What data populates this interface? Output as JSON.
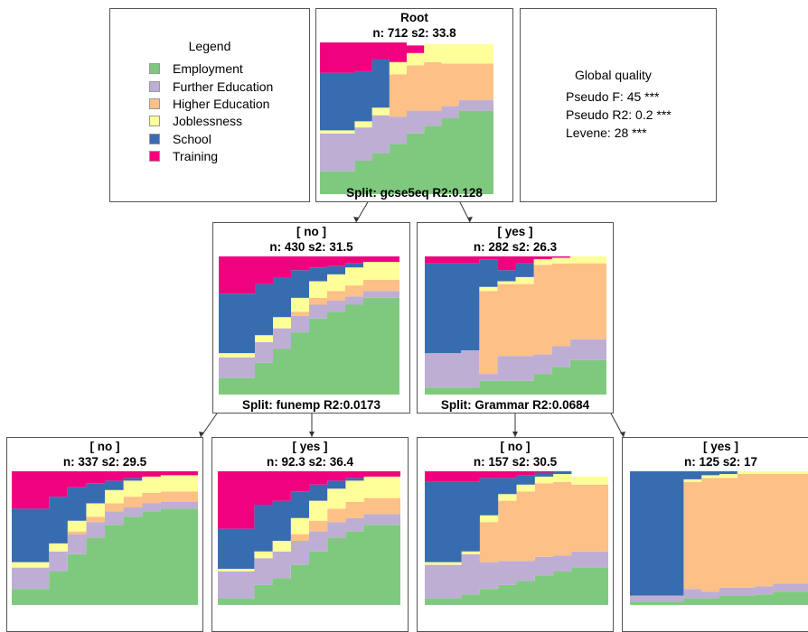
{
  "colors": {
    "Employment": "#7fc97f",
    "Further Education": "#beaed4",
    "Higher Education": "#fdc086",
    "Joblessness": "#ffff99",
    "School": "#386cb0",
    "Training": "#f0027f"
  },
  "legend": {
    "title": "Legend",
    "items": [
      {
        "label": "Employment",
        "color": "#7fc97f"
      },
      {
        "label": "Further Education",
        "color": "#beaed4"
      },
      {
        "label": "Higher Education",
        "color": "#fdc086"
      },
      {
        "label": "Joblessness",
        "color": "#ffff99"
      },
      {
        "label": "School",
        "color": "#386cb0"
      },
      {
        "label": "Training",
        "color": "#f0027f"
      }
    ]
  },
  "quality": {
    "title": "Global quality",
    "lines": [
      "Pseudo F: 45 ***",
      "Pseudo R2: 0.2 ***",
      "Levene: 28 ***"
    ]
  },
  "nodes": {
    "root": {
      "label": "Root",
      "stats": "n: 712 s2: 33.8",
      "split": "Split: gcse5eq R2:0.128",
      "profile": [
        [
          0.15,
          0.25,
          0,
          0.02,
          0.38,
          0.2
        ],
        [
          0.15,
          0.25,
          0,
          0.02,
          0.38,
          0.2
        ],
        [
          0.22,
          0.22,
          0,
          0.04,
          0.33,
          0.19
        ],
        [
          0.27,
          0.25,
          0,
          0.05,
          0.32,
          0.11
        ],
        [
          0.33,
          0.18,
          0.28,
          0.08,
          0,
          0.13
        ],
        [
          0.4,
          0.15,
          0.3,
          0.08,
          0,
          0.05
        ],
        [
          0.45,
          0.1,
          0.32,
          0.12,
          0,
          0
        ],
        [
          0.5,
          0.08,
          0.28,
          0.13,
          0,
          0
        ],
        [
          0.55,
          0.07,
          0.24,
          0.13,
          0,
          0
        ],
        [
          0.55,
          0.07,
          0.24,
          0.13,
          0,
          0
        ]
      ]
    },
    "no": {
      "label": "[ no ]",
      "stats": "n: 430 s2: 31.5",
      "split": "Split: funemp R2:0.0173",
      "profile": [
        [
          0.12,
          0.15,
          0,
          0.03,
          0.43,
          0.27
        ],
        [
          0.12,
          0.15,
          0,
          0.03,
          0.43,
          0.27
        ],
        [
          0.23,
          0.15,
          0,
          0.05,
          0.37,
          0.2
        ],
        [
          0.33,
          0.15,
          0,
          0.08,
          0.29,
          0.15
        ],
        [
          0.45,
          0.12,
          0.03,
          0.1,
          0.2,
          0.1
        ],
        [
          0.55,
          0.1,
          0.05,
          0.12,
          0.1,
          0.08
        ],
        [
          0.6,
          0.08,
          0.07,
          0.12,
          0.06,
          0.07
        ],
        [
          0.65,
          0.06,
          0.08,
          0.13,
          0.03,
          0.05
        ],
        [
          0.7,
          0.05,
          0.08,
          0.13,
          0,
          0.04
        ],
        [
          0.7,
          0.05,
          0.08,
          0.13,
          0,
          0.04
        ]
      ]
    },
    "yes": {
      "label": "[ yes ]",
      "stats": "n: 282 s2: 26.3",
      "split": "Split: Grammar R2:0.0684",
      "profile": [
        [
          0.05,
          0.25,
          0,
          0,
          0.65,
          0.05
        ],
        [
          0.05,
          0.25,
          0,
          0,
          0.65,
          0.05
        ],
        [
          0.05,
          0.27,
          0,
          0,
          0.63,
          0.05
        ],
        [
          0.1,
          0.05,
          0.6,
          0.03,
          0.2,
          0.02
        ],
        [
          0.1,
          0.18,
          0.52,
          0.02,
          0.08,
          0.1
        ],
        [
          0.1,
          0.18,
          0.52,
          0.05,
          0.1,
          0.05
        ],
        [
          0.15,
          0.14,
          0.65,
          0.04,
          0,
          0.02
        ],
        [
          0.2,
          0.15,
          0.6,
          0.04,
          0,
          0.01
        ],
        [
          0.25,
          0.15,
          0.55,
          0.05,
          0,
          0
        ],
        [
          0.25,
          0.15,
          0.55,
          0.05,
          0,
          0
        ]
      ]
    },
    "no_no": {
      "label": "[ no ]",
      "stats": "n: 337 s2: 29.5",
      "profile": [
        [
          0.12,
          0.16,
          0,
          0.04,
          0.4,
          0.28
        ],
        [
          0.12,
          0.16,
          0,
          0.04,
          0.4,
          0.28
        ],
        [
          0.25,
          0.15,
          0,
          0.06,
          0.35,
          0.19
        ],
        [
          0.38,
          0.15,
          0.02,
          0.08,
          0.25,
          0.12
        ],
        [
          0.5,
          0.12,
          0.04,
          0.1,
          0.15,
          0.09
        ],
        [
          0.6,
          0.1,
          0.06,
          0.1,
          0.07,
          0.07
        ],
        [
          0.66,
          0.07,
          0.08,
          0.12,
          0.02,
          0.05
        ],
        [
          0.7,
          0.06,
          0.08,
          0.12,
          0,
          0.04
        ],
        [
          0.72,
          0.05,
          0.08,
          0.12,
          0,
          0.03
        ],
        [
          0.72,
          0.05,
          0.08,
          0.12,
          0,
          0.03
        ]
      ]
    },
    "no_yes": {
      "label": "[ yes ]",
      "stats": "n: 92.3 s2: 36.4",
      "profile": [
        [
          0.05,
          0.2,
          0,
          0.02,
          0.3,
          0.43
        ],
        [
          0.05,
          0.2,
          0,
          0.02,
          0.3,
          0.43
        ],
        [
          0.15,
          0.2,
          0,
          0.05,
          0.35,
          0.25
        ],
        [
          0.2,
          0.2,
          0,
          0.08,
          0.3,
          0.22
        ],
        [
          0.3,
          0.18,
          0.05,
          0.12,
          0.2,
          0.15
        ],
        [
          0.4,
          0.15,
          0.08,
          0.15,
          0.12,
          0.1
        ],
        [
          0.5,
          0.12,
          0.1,
          0.15,
          0.06,
          0.07
        ],
        [
          0.55,
          0.1,
          0.12,
          0.16,
          0.02,
          0.05
        ],
        [
          0.6,
          0.08,
          0.12,
          0.16,
          0,
          0.04
        ],
        [
          0.6,
          0.08,
          0.12,
          0.16,
          0,
          0.04
        ]
      ]
    },
    "yes_no": {
      "label": "[ no ]",
      "stats": "n: 157 s2: 30.5",
      "profile": [
        [
          0.05,
          0.25,
          0,
          0.02,
          0.6,
          0.08
        ],
        [
          0.05,
          0.25,
          0,
          0.02,
          0.6,
          0.08
        ],
        [
          0.08,
          0.3,
          0,
          0.02,
          0.52,
          0.08
        ],
        [
          0.12,
          0.2,
          0.3,
          0.05,
          0.28,
          0.05
        ],
        [
          0.15,
          0.18,
          0.45,
          0.05,
          0.12,
          0.05
        ],
        [
          0.18,
          0.15,
          0.52,
          0.05,
          0.07,
          0.03
        ],
        [
          0.22,
          0.14,
          0.55,
          0.05,
          0.03,
          0.01
        ],
        [
          0.25,
          0.12,
          0.55,
          0.06,
          0.02,
          0
        ],
        [
          0.28,
          0.12,
          0.5,
          0.06,
          0,
          0
        ],
        [
          0.28,
          0.12,
          0.5,
          0.06,
          0,
          0
        ]
      ]
    },
    "yes_yes": {
      "label": "[ yes ]",
      "stats": "n: 125 s2: 17",
      "profile": [
        [
          0.02,
          0.05,
          0,
          0,
          0.93,
          0
        ],
        [
          0.02,
          0.05,
          0,
          0,
          0.93,
          0
        ],
        [
          0.02,
          0.05,
          0,
          0,
          0.93,
          0
        ],
        [
          0.05,
          0.07,
          0.8,
          0.02,
          0.06,
          0
        ],
        [
          0.05,
          0.05,
          0.85,
          0.02,
          0.03,
          0
        ],
        [
          0.07,
          0.06,
          0.82,
          0.03,
          0.02,
          0
        ],
        [
          0.07,
          0.06,
          0.85,
          0.02,
          0,
          0
        ],
        [
          0.08,
          0.06,
          0.84,
          0.02,
          0,
          0
        ],
        [
          0.1,
          0.06,
          0.82,
          0.02,
          0,
          0
        ],
        [
          0.1,
          0.06,
          0.82,
          0.02,
          0,
          0
        ]
      ]
    }
  }
}
